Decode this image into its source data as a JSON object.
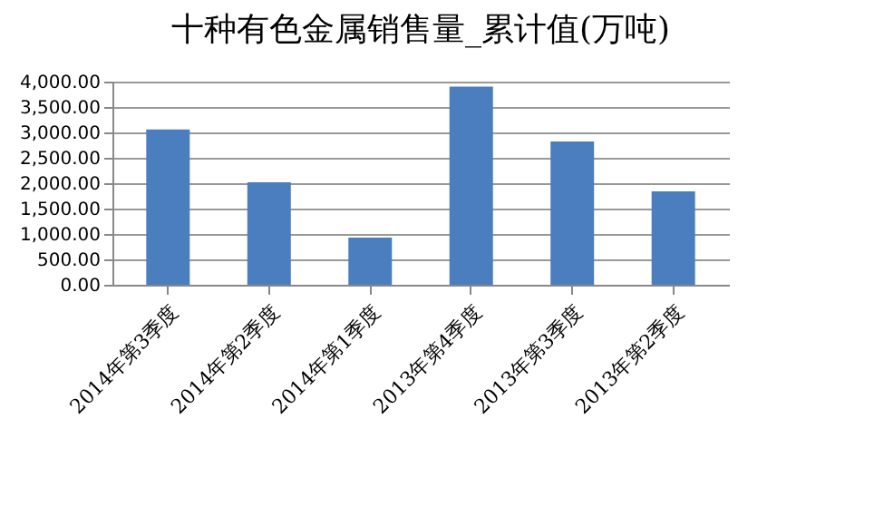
{
  "chart_data": {
    "type": "bar",
    "title": "十种有色金属销售量_累计值(万吨)",
    "categories": [
      "2014年第3季度",
      "2014年第2季度",
      "2014年第1季度",
      "2013年第4季度",
      "2013年第3季度",
      "2013年第2季度"
    ],
    "values": [
      3060,
      2020,
      930,
      3900,
      2820,
      1840
    ],
    "color": "#4a7ebf",
    "ylim": [
      0,
      4000
    ],
    "yticks": [
      {
        "value": 0,
        "label": "0.00"
      },
      {
        "value": 500,
        "label": "500.00"
      },
      {
        "value": 1000,
        "label": "1,000.00"
      },
      {
        "value": 1500,
        "label": "1,500.00"
      },
      {
        "value": 2000,
        "label": "2,000.00"
      },
      {
        "value": 2500,
        "label": "2,500.00"
      },
      {
        "value": 3000,
        "label": "3,000.00"
      },
      {
        "value": 3500,
        "label": "3,500.00"
      },
      {
        "value": 4000,
        "label": "4,000.00"
      }
    ],
    "grid": true
  }
}
